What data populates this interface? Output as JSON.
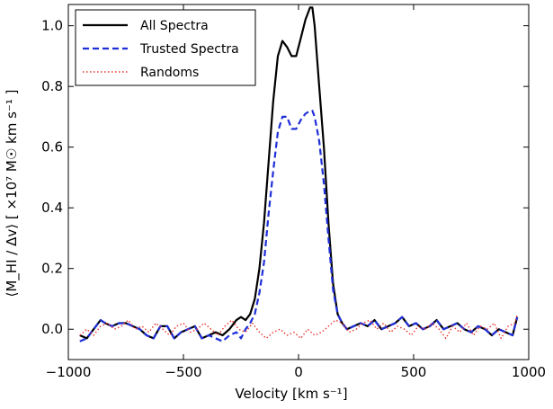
{
  "chart_data": {
    "type": "line",
    "title": "",
    "xlabel": "Velocity [km s⁻¹]",
    "ylabel": "⟨M_HI / Δv⟩ [ ×10⁷ M☉ km s⁻¹ ]",
    "xlim": [
      -1000,
      1000
    ],
    "ylim": [
      -0.1,
      1.07
    ],
    "xticks": [
      -1000,
      -500,
      0,
      500,
      1000
    ],
    "xtick_labels": [
      "−1000",
      "−500",
      "0",
      "500",
      "1000"
    ],
    "yticks": [
      0.0,
      0.2,
      0.4,
      0.6,
      0.8,
      1.0
    ],
    "ytick_labels": [
      "0.0",
      "0.2",
      "0.4",
      "0.6",
      "0.8",
      "1.0"
    ],
    "legend_position": "top-left",
    "grid": false,
    "series": [
      {
        "name": "All Spectra",
        "color": "#000000",
        "style": "solid",
        "x": [
          -950,
          -920,
          -890,
          -860,
          -840,
          -810,
          -780,
          -750,
          -720,
          -690,
          -660,
          -630,
          -600,
          -570,
          -540,
          -510,
          -480,
          -450,
          -420,
          -390,
          -360,
          -330,
          -300,
          -270,
          -250,
          -230,
          -210,
          -190,
          -170,
          -150,
          -130,
          -110,
          -90,
          -70,
          -50,
          -30,
          -10,
          10,
          30,
          50,
          60,
          70,
          90,
          110,
          130,
          150,
          170,
          190,
          210,
          240,
          270,
          300,
          330,
          360,
          390,
          420,
          450,
          480,
          510,
          540,
          570,
          600,
          630,
          660,
          690,
          720,
          750,
          780,
          810,
          840,
          870,
          900,
          930,
          950
        ],
        "values": [
          -0.02,
          -0.03,
          0.0,
          0.03,
          0.02,
          0.01,
          0.02,
          0.02,
          0.01,
          0.0,
          -0.02,
          -0.03,
          0.01,
          0.01,
          -0.03,
          -0.01,
          0.0,
          0.01,
          -0.03,
          -0.02,
          -0.01,
          -0.02,
          0.0,
          0.03,
          0.04,
          0.03,
          0.05,
          0.1,
          0.2,
          0.35,
          0.55,
          0.75,
          0.9,
          0.95,
          0.93,
          0.9,
          0.9,
          0.96,
          1.02,
          1.06,
          1.06,
          1.0,
          0.8,
          0.6,
          0.35,
          0.15,
          0.05,
          0.02,
          0.0,
          0.01,
          0.02,
          0.01,
          0.03,
          0.0,
          0.01,
          0.02,
          0.04,
          0.01,
          0.02,
          0.0,
          0.01,
          0.03,
          0.0,
          0.01,
          0.02,
          0.0,
          -0.01,
          0.01,
          0.0,
          -0.02,
          0.0,
          -0.01,
          -0.02,
          0.04
        ]
      },
      {
        "name": "Trusted Spectra",
        "color": "#1f2fd8",
        "style": "dashed",
        "x": [
          -950,
          -920,
          -890,
          -860,
          -840,
          -810,
          -780,
          -750,
          -720,
          -690,
          -660,
          -630,
          -600,
          -570,
          -540,
          -510,
          -480,
          -450,
          -420,
          -390,
          -360,
          -330,
          -300,
          -270,
          -250,
          -230,
          -210,
          -190,
          -170,
          -150,
          -130,
          -110,
          -90,
          -70,
          -50,
          -30,
          -10,
          10,
          30,
          50,
          60,
          70,
          90,
          110,
          130,
          150,
          170,
          190,
          210,
          240,
          270,
          300,
          330,
          360,
          390,
          420,
          450,
          480,
          510,
          540,
          570,
          600,
          630,
          660,
          690,
          720,
          750,
          780,
          810,
          840,
          870,
          900,
          930,
          950
        ],
        "values": [
          -0.04,
          -0.03,
          0.0,
          0.03,
          0.02,
          0.01,
          0.02,
          0.02,
          0.01,
          0.0,
          -0.02,
          -0.03,
          0.01,
          0.01,
          -0.03,
          -0.01,
          0.0,
          0.01,
          -0.03,
          -0.02,
          -0.03,
          -0.04,
          -0.02,
          -0.01,
          -0.03,
          0.0,
          0.02,
          0.05,
          0.12,
          0.22,
          0.38,
          0.52,
          0.65,
          0.7,
          0.7,
          0.66,
          0.66,
          0.69,
          0.71,
          0.72,
          0.72,
          0.7,
          0.62,
          0.48,
          0.3,
          0.13,
          0.05,
          0.02,
          0.0,
          0.01,
          0.02,
          0.01,
          0.03,
          0.0,
          0.01,
          0.02,
          0.04,
          0.01,
          0.02,
          0.0,
          0.01,
          0.03,
          0.0,
          0.01,
          0.02,
          0.0,
          -0.01,
          0.01,
          0.0,
          -0.02,
          0.0,
          -0.01,
          -0.02,
          0.04
        ]
      },
      {
        "name": "Randoms",
        "color": "#e8322a",
        "style": "dotted",
        "x": [
          -950,
          -920,
          -890,
          -860,
          -830,
          -800,
          -770,
          -740,
          -710,
          -680,
          -650,
          -620,
          -590,
          -560,
          -530,
          -500,
          -470,
          -440,
          -410,
          -380,
          -350,
          -320,
          -290,
          -260,
          -230,
          -200,
          -170,
          -140,
          -110,
          -80,
          -50,
          -20,
          10,
          40,
          70,
          100,
          130,
          160,
          190,
          220,
          250,
          280,
          310,
          340,
          370,
          400,
          430,
          460,
          490,
          520,
          550,
          580,
          610,
          640,
          670,
          700,
          730,
          760,
          790,
          820,
          850,
          880,
          910,
          940,
          950
        ],
        "values": [
          -0.02,
          0.0,
          -0.02,
          0.01,
          0.02,
          0.0,
          0.01,
          0.03,
          0.0,
          0.01,
          -0.01,
          0.02,
          0.0,
          -0.02,
          0.01,
          0.02,
          -0.01,
          0.0,
          0.02,
          0.0,
          -0.02,
          0.01,
          0.03,
          0.0,
          -0.01,
          0.02,
          -0.01,
          -0.03,
          -0.01,
          0.0,
          -0.02,
          -0.01,
          -0.03,
          0.0,
          -0.02,
          -0.01,
          0.01,
          0.03,
          0.02,
          -0.01,
          0.0,
          0.02,
          0.03,
          0.0,
          0.02,
          -0.01,
          0.01,
          0.0,
          -0.02,
          0.01,
          0.0,
          0.02,
          0.0,
          -0.03,
          0.01,
          -0.01,
          0.02,
          -0.02,
          0.01,
          0.0,
          0.02,
          -0.03,
          0.01,
          0.02,
          0.05
        ]
      }
    ]
  }
}
